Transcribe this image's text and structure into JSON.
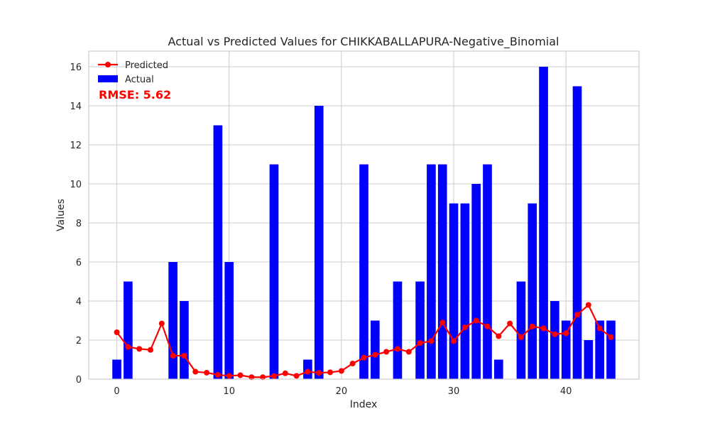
{
  "chart_data": {
    "type": "bar",
    "title": "Actual vs Predicted Values for CHIKKABALLAPURA-Negative_Binomial",
    "xlabel": "Index",
    "ylabel": "Values",
    "xlim": [
      -2.5,
      46.5
    ],
    "ylim": [
      0,
      16.8
    ],
    "xticks": [
      0,
      10,
      20,
      30,
      40
    ],
    "yticks": [
      0,
      2,
      4,
      6,
      8,
      10,
      12,
      14,
      16
    ],
    "grid": true,
    "legend_position": "top-left",
    "annotation": "RMSE: 5.62",
    "x": [
      0,
      1,
      2,
      3,
      4,
      5,
      6,
      7,
      8,
      9,
      10,
      11,
      12,
      13,
      14,
      15,
      16,
      17,
      18,
      19,
      20,
      21,
      22,
      23,
      24,
      25,
      26,
      27,
      28,
      29,
      30,
      31,
      32,
      33,
      34,
      35,
      36,
      37,
      38,
      39,
      40,
      41,
      42,
      43,
      44
    ],
    "series": [
      {
        "name": "Actual",
        "kind": "bar",
        "color": "#0000ff",
        "values": [
          1,
          5,
          0,
          0,
          0,
          6,
          4,
          0,
          0,
          13,
          6,
          0,
          0,
          0,
          11,
          0,
          0,
          1,
          14,
          0,
          0,
          0,
          11,
          3,
          0,
          5,
          0,
          5,
          11,
          11,
          9,
          9,
          10,
          11,
          1,
          0,
          5,
          9,
          16,
          4,
          3,
          15,
          2,
          3,
          3
        ]
      },
      {
        "name": "Predicted",
        "kind": "line",
        "color": "#ff0000",
        "values": [
          2.4,
          1.65,
          1.55,
          1.5,
          2.85,
          1.2,
          1.2,
          0.38,
          0.33,
          0.22,
          0.17,
          0.2,
          0.1,
          0.1,
          0.16,
          0.3,
          0.17,
          0.38,
          0.32,
          0.35,
          0.42,
          0.8,
          1.1,
          1.25,
          1.4,
          1.55,
          1.4,
          1.85,
          1.95,
          2.9,
          1.95,
          2.65,
          3.0,
          2.7,
          2.2,
          2.85,
          2.15,
          2.7,
          2.6,
          2.3,
          2.35,
          3.3,
          3.8,
          2.6,
          2.15
        ]
      }
    ]
  }
}
